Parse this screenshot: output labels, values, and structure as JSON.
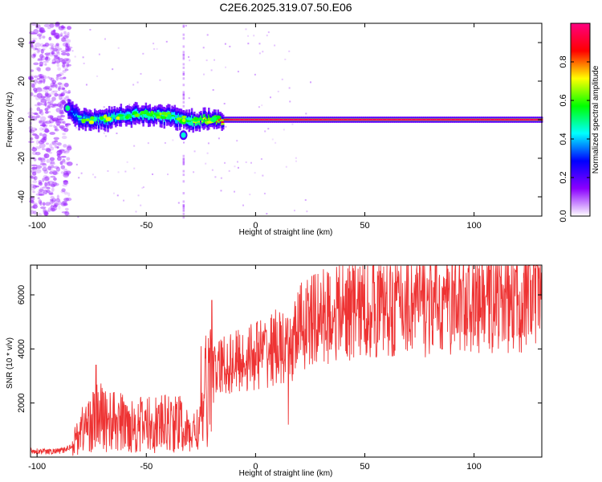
{
  "figure_title": "C2E6.2025.319.07.50.E06",
  "chart_data": [
    {
      "type": "heatmap",
      "name": "spectrogram",
      "xlabel": "Height of straight line (km)",
      "ylabel": "Frequency (Hz)",
      "xlim": [
        -103,
        131
      ],
      "ylim": [
        -50,
        50
      ],
      "xticks": [
        -100,
        -50,
        0,
        50,
        100
      ],
      "yticks": [
        -40,
        -20,
        0,
        20,
        40
      ],
      "colorbar": {
        "label": "Normalized spectral amplitude",
        "range": [
          0,
          1
        ],
        "ticks": [
          0.0,
          0.2,
          0.4,
          0.6,
          0.8
        ],
        "colors": [
          "#ffffff",
          "#8b00ff",
          "#0000ff",
          "#00ffff",
          "#00ff00",
          "#ffff00",
          "#ff0000",
          "#ff0080"
        ]
      },
      "ridge": {
        "x": [
          -86,
          -80,
          -70,
          -60,
          -50,
          -40,
          -33,
          -30,
          -25,
          -20,
          -15,
          -10,
          0,
          10,
          20,
          50,
          100,
          131
        ],
        "freq_hz": [
          5,
          0,
          0,
          2,
          3,
          2,
          0,
          -1,
          0,
          0,
          0,
          0,
          0,
          0,
          0,
          0,
          0,
          0
        ],
        "amplitude": [
          0.35,
          0.45,
          0.5,
          0.55,
          0.6,
          0.6,
          0.5,
          0.6,
          0.7,
          0.8,
          0.9,
          0.95,
          0.95,
          0.95,
          0.95,
          0.95,
          0.95,
          0.95
        ]
      },
      "features": [
        {
          "x": -33,
          "freq_hz": -8,
          "amplitude": 0.45
        },
        {
          "x": -86,
          "freq_hz": 6,
          "amplitude": 0.5
        }
      ],
      "noise_region_x": [
        -103,
        -85
      ]
    },
    {
      "type": "line",
      "name": "snr",
      "xlabel": "Height of straight line (km)",
      "ylabel": "SNR (10 * v/v)",
      "xlim": [
        -103,
        131
      ],
      "ylim": [
        0,
        7100
      ],
      "xticks": [
        -100,
        -50,
        0,
        50,
        100
      ],
      "yticks": [
        2000,
        4000,
        6000
      ],
      "color": "#ee3333",
      "series": [
        {
          "name": "SNR",
          "x": [
            -103,
            -95,
            -88,
            -84,
            -80,
            -75,
            -72,
            -65,
            -55,
            -45,
            -35,
            -30,
            -25,
            -22,
            -20,
            -15,
            -10,
            -5,
            0,
            5,
            10,
            15,
            20,
            25,
            30,
            40,
            50,
            60,
            70,
            80,
            90,
            100,
            110,
            120,
            131
          ],
          "values": [
            200,
            150,
            200,
            400,
            1000,
            1300,
            1500,
            1300,
            1200,
            1200,
            1250,
            800,
            1200,
            2800,
            3000,
            3400,
            3500,
            3600,
            3800,
            3900,
            4100,
            3800,
            4800,
            5000,
            5200,
            5400,
            5500,
            5600,
            5700,
            5600,
            5800,
            5800,
            5900,
            5900,
            6000
          ]
        }
      ],
      "spikes": [
        {
          "x": -20,
          "value": 5800
        },
        {
          "x": -25,
          "value": 4100
        },
        {
          "x": 15,
          "value": 1200
        },
        {
          "x": -73,
          "value": 3400
        },
        {
          "x": 80,
          "value": 6900
        },
        {
          "x": 100,
          "value": 6800
        }
      ]
    }
  ]
}
